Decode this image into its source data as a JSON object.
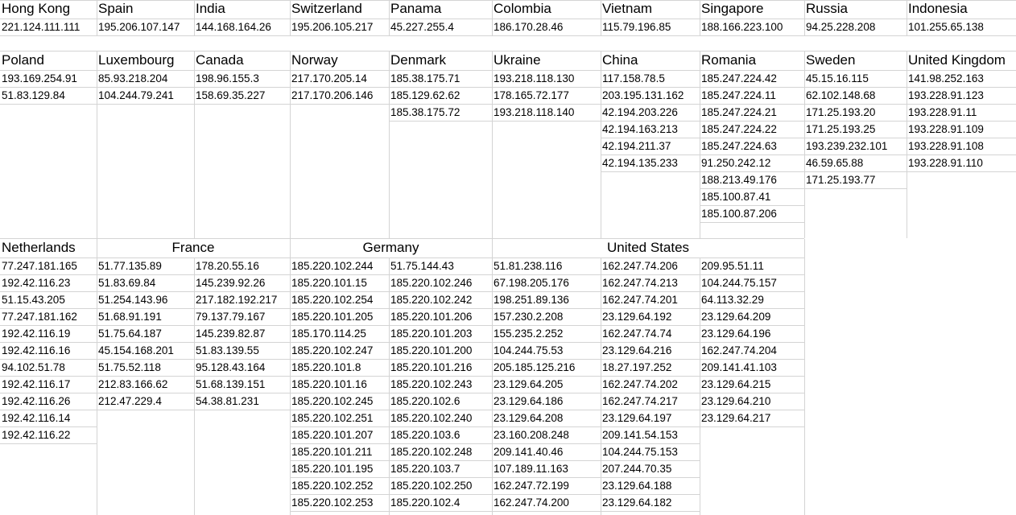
{
  "blocks": [
    {
      "countries": [
        {
          "name": "Hong Kong",
          "ips": [
            "221.124.111.111"
          ]
        },
        {
          "name": "Spain",
          "ips": [
            "195.206.107.147"
          ]
        },
        {
          "name": "India",
          "ips": [
            "144.168.164.26"
          ]
        },
        {
          "name": "Switzerland",
          "ips": [
            "195.206.105.217"
          ]
        },
        {
          "name": "Panama",
          "ips": [
            "45.227.255.4"
          ]
        },
        {
          "name": "Colombia",
          "ips": [
            "186.170.28.46"
          ]
        },
        {
          "name": "Vietnam",
          "ips": [
            "115.79.196.85"
          ]
        },
        {
          "name": "Singapore",
          "ips": [
            "188.166.223.100"
          ]
        },
        {
          "name": "Russia",
          "ips": [
            "94.25.228.208"
          ]
        },
        {
          "name": "Indonesia",
          "ips": [
            "101.255.65.138"
          ]
        }
      ]
    },
    {
      "countries": [
        {
          "name": "Poland",
          "ips": [
            "193.169.254.91",
            "51.83.129.84"
          ]
        },
        {
          "name": "Luxembourg",
          "ips": [
            "85.93.218.204",
            "104.244.79.241"
          ]
        },
        {
          "name": "Canada",
          "ips": [
            "198.96.155.3",
            "158.69.35.227"
          ]
        },
        {
          "name": "Norway",
          "ips": [
            "217.170.205.14",
            "217.170.206.146"
          ]
        },
        {
          "name": "Denmark",
          "ips": [
            "185.38.175.71",
            "185.129.62.62",
            "185.38.175.72"
          ]
        },
        {
          "name": "Ukraine",
          "ips": [
            "193.218.118.130",
            "178.165.72.177",
            "193.218.118.140"
          ]
        },
        {
          "name": "China",
          "ips": [
            "117.158.78.5",
            "203.195.131.162",
            "42.194.203.226",
            "42.194.163.213",
            "42.194.211.37",
            "42.194.135.233"
          ]
        },
        {
          "name": "Romania",
          "ips": [
            "185.247.224.42",
            "185.247.224.11",
            "185.247.224.21",
            "185.247.224.22",
            "185.247.224.63",
            "91.250.242.12",
            "188.213.49.176",
            "185.100.87.41",
            "185.100.87.206"
          ]
        },
        {
          "name": "Sweden",
          "ips": [
            "45.15.16.115",
            "62.102.148.68",
            "171.25.193.20",
            "171.25.193.25",
            "193.239.232.101",
            "46.59.65.88",
            "171.25.193.77"
          ]
        },
        {
          "name": "United Kingdom",
          "ips": [
            "141.98.252.163",
            "193.228.91.123",
            "193.228.91.11",
            "193.228.91.109",
            "193.228.91.108",
            "193.228.91.110"
          ]
        }
      ]
    },
    {
      "countries": [
        {
          "name": "Netherlands",
          "columns": [
            [
              "77.247.181.165",
              "192.42.116.23",
              "51.15.43.205",
              "77.247.181.162",
              "192.42.116.19",
              "192.42.116.16",
              "94.102.51.78",
              "192.42.116.17",
              "192.42.116.26",
              "192.42.116.14",
              "192.42.116.22"
            ]
          ]
        },
        {
          "name": "France",
          "columns": [
            [
              "51.77.135.89",
              "51.83.69.84",
              "51.254.143.96",
              "51.68.91.191",
              "51.75.64.187",
              "45.154.168.201",
              "51.75.52.118",
              "212.83.166.62",
              "212.47.229.4"
            ],
            [
              "178.20.55.16",
              "145.239.92.26",
              "217.182.192.217",
              "79.137.79.167",
              "145.239.82.87",
              "51.83.139.55",
              "95.128.43.164",
              "51.68.139.151",
              "54.38.81.231"
            ]
          ]
        },
        {
          "name": "Germany",
          "columns": [
            [
              "185.220.102.244",
              "185.220.101.15",
              "185.220.102.254",
              "185.220.101.205",
              "185.170.114.25",
              "185.220.102.247",
              "185.220.101.8",
              "185.220.101.16",
              "185.220.102.245",
              "185.220.102.251",
              "185.220.101.207",
              "185.220.101.211",
              "185.220.101.195",
              "185.220.102.252",
              "185.220.102.253"
            ],
            [
              "51.75.144.43",
              "185.220.102.246",
              "185.220.102.242",
              "185.220.101.206",
              "185.220.101.203",
              "185.220.101.200",
              "185.220.101.216",
              "185.220.102.243",
              "185.220.102.6",
              "185.220.102.240",
              "185.220.103.6",
              "185.220.102.248",
              "185.220.103.7",
              "185.220.102.250",
              "185.220.102.4"
            ]
          ]
        },
        {
          "name": "United States",
          "columns": [
            [
              "51.81.238.116",
              "67.198.205.176",
              "198.251.89.136",
              "157.230.2.208",
              "155.235.2.252",
              "104.244.75.53",
              "205.185.125.216",
              "23.129.64.205",
              "23.129.64.186",
              "23.129.64.208",
              "23.160.208.248",
              "209.141.40.46",
              "107.189.11.163",
              "162.247.72.199",
              "162.247.74.200"
            ],
            [
              "162.247.74.206",
              "162.247.74.213",
              "162.247.74.201",
              "23.129.64.192",
              "162.247.74.74",
              "23.129.64.216",
              "18.27.197.252",
              "162.247.74.202",
              "162.247.74.217",
              "23.129.64.197",
              "209.141.54.153",
              "104.244.75.153",
              "207.244.70.35",
              "23.129.64.188",
              "23.129.64.182"
            ],
            [
              "209.95.51.11",
              "104.244.75.157",
              "64.113.32.29",
              "23.129.64.209",
              "23.129.64.196",
              "162.247.74.204",
              "209.141.41.103",
              "23.129.64.215",
              "23.129.64.210",
              "23.129.64.217"
            ]
          ]
        }
      ]
    }
  ]
}
